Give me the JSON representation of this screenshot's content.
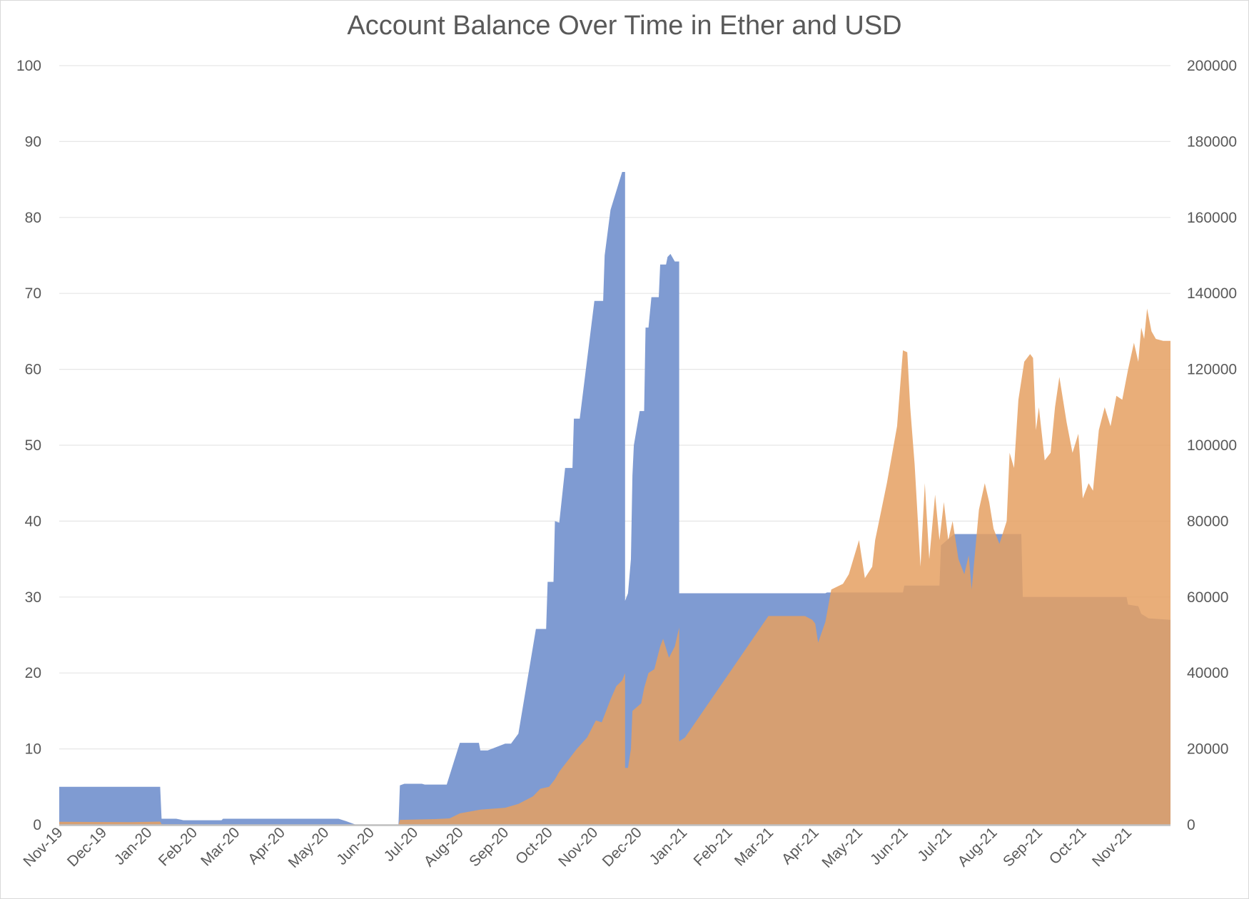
{
  "chart_data": {
    "type": "area",
    "title": "Account Balance Over Time in Ether and USD",
    "x_type": "date",
    "x_labels": [
      "Nov-19",
      "Dec-19",
      "Jan-20",
      "Feb-20",
      "Mar-20",
      "Apr-20",
      "May-20",
      "Jun-20",
      "Jul-20",
      "Aug-20",
      "Sep-20",
      "Oct-20",
      "Nov-20",
      "Dec-20",
      "Jan-21",
      "Feb-21",
      "Mar-21",
      "Apr-21",
      "May-21",
      "Jun-21",
      "Jul-21",
      "Aug-21",
      "Sep-21",
      "Oct-21",
      "Nov-21"
    ],
    "x_range": [
      "2019-11-01",
      "2021-11-30"
    ],
    "left_axis": {
      "ylim": [
        0,
        100
      ],
      "ticks": [
        0,
        10,
        20,
        30,
        40,
        50,
        60,
        70,
        80,
        90,
        100
      ]
    },
    "right_axis": {
      "ylim": [
        0,
        200000
      ],
      "ticks": [
        0,
        20000,
        40000,
        60000,
        80000,
        100000,
        120000,
        140000,
        160000,
        180000,
        200000
      ]
    },
    "grid": true,
    "legend": "none",
    "series": [
      {
        "axis": "left",
        "color": "#7f9bd2",
        "points": [
          [
            "2019-11-01",
            5
          ],
          [
            "2020-01-09",
            5
          ],
          [
            "2020-01-10",
            0.8
          ],
          [
            "2020-01-20",
            0.8
          ],
          [
            "2020-01-25",
            0.6
          ],
          [
            "2020-02-20",
            0.6
          ],
          [
            "2020-02-21",
            0.8
          ],
          [
            "2020-05-10",
            0.8
          ],
          [
            "2020-05-15",
            0.5
          ],
          [
            "2020-05-22",
            0
          ],
          [
            "2020-06-20",
            0
          ],
          [
            "2020-06-21",
            5.2
          ],
          [
            "2020-06-24",
            5.4
          ],
          [
            "2020-07-06",
            5.4
          ],
          [
            "2020-07-08",
            5.3
          ],
          [
            "2020-07-23",
            5.3
          ],
          [
            "2020-08-01",
            10.8
          ],
          [
            "2020-08-14",
            10.8
          ],
          [
            "2020-08-15",
            9.8
          ],
          [
            "2020-08-20",
            9.8
          ],
          [
            "2020-09-01",
            10.7
          ],
          [
            "2020-09-05",
            10.7
          ],
          [
            "2020-09-10",
            12
          ],
          [
            "2020-09-22",
            25.8
          ],
          [
            "2020-09-29",
            25.8
          ],
          [
            "2020-09-30",
            32
          ],
          [
            "2020-10-04",
            32
          ],
          [
            "2020-10-05",
            40
          ],
          [
            "2020-10-08",
            39.8
          ],
          [
            "2020-10-12",
            47
          ],
          [
            "2020-10-17",
            47
          ],
          [
            "2020-10-18",
            53.5
          ],
          [
            "2020-10-22",
            53.5
          ],
          [
            "2020-11-01",
            69
          ],
          [
            "2020-11-07",
            69
          ],
          [
            "2020-11-08",
            75
          ],
          [
            "2020-11-12",
            81
          ],
          [
            "2020-11-20",
            86
          ],
          [
            "2020-11-22",
            86
          ],
          [
            "2020-11-22",
            29.5
          ],
          [
            "2020-11-24",
            30.5
          ],
          [
            "2020-11-26",
            35
          ],
          [
            "2020-11-27",
            46
          ],
          [
            "2020-11-28",
            50
          ],
          [
            "2020-12-02",
            54.5
          ],
          [
            "2020-12-05",
            54.5
          ],
          [
            "2020-12-06",
            65.5
          ],
          [
            "2020-12-08",
            65.5
          ],
          [
            "2020-12-10",
            69.5
          ],
          [
            "2020-12-15",
            69.5
          ],
          [
            "2020-12-16",
            73.8
          ],
          [
            "2020-12-20",
            73.8
          ],
          [
            "2020-12-21",
            74.8
          ],
          [
            "2020-12-23",
            75.2
          ],
          [
            "2020-12-26",
            74.2
          ],
          [
            "2020-12-29",
            74.2
          ],
          [
            "2020-12-29",
            30.5
          ],
          [
            "2021-04-08",
            30.5
          ],
          [
            "2021-04-09",
            30.6
          ],
          [
            "2021-05-31",
            30.6
          ],
          [
            "2021-06-01",
            31.5
          ],
          [
            "2021-06-25",
            31.5
          ],
          [
            "2021-06-26",
            36.8
          ],
          [
            "2021-07-05",
            38.3
          ],
          [
            "2021-07-25",
            38.3
          ],
          [
            "2021-08-20",
            38.3
          ],
          [
            "2021-08-21",
            30
          ],
          [
            "2021-10-01",
            30
          ],
          [
            "2021-10-31",
            30
          ],
          [
            "2021-11-01",
            29
          ],
          [
            "2021-11-08",
            28.8
          ],
          [
            "2021-11-10",
            27.8
          ],
          [
            "2021-11-15",
            27.2
          ],
          [
            "2021-11-30",
            27
          ]
        ]
      },
      {
        "axis": "right",
        "color": "#e5a061",
        "points": [
          [
            "2019-11-01",
            800
          ],
          [
            "2019-12-20",
            700
          ],
          [
            "2020-01-09",
            850
          ],
          [
            "2020-01-10",
            140
          ],
          [
            "2020-05-22",
            0
          ],
          [
            "2020-06-20",
            0
          ],
          [
            "2020-06-21",
            1300
          ],
          [
            "2020-07-15",
            1500
          ],
          [
            "2020-07-25",
            1700
          ],
          [
            "2020-08-01",
            3000
          ],
          [
            "2020-08-15",
            4000
          ],
          [
            "2020-09-01",
            4500
          ],
          [
            "2020-09-10",
            5500
          ],
          [
            "2020-09-20",
            7500
          ],
          [
            "2020-09-25",
            9500
          ],
          [
            "2020-10-01",
            10000
          ],
          [
            "2020-10-05",
            12000
          ],
          [
            "2020-10-08",
            14000
          ],
          [
            "2020-10-12",
            16000
          ],
          [
            "2020-10-15",
            17500
          ],
          [
            "2020-10-20",
            20000
          ],
          [
            "2020-10-27",
            23000
          ],
          [
            "2020-11-02",
            27500
          ],
          [
            "2020-11-06",
            27000
          ],
          [
            "2020-11-12",
            33000
          ],
          [
            "2020-11-16",
            36500
          ],
          [
            "2020-11-20",
            38000
          ],
          [
            "2020-11-22",
            40000
          ],
          [
            "2020-11-22",
            15000
          ],
          [
            "2020-11-24",
            15000
          ],
          [
            "2020-11-26",
            20000
          ],
          [
            "2020-11-27",
            30000
          ],
          [
            "2020-11-30",
            31000
          ],
          [
            "2020-12-03",
            32000
          ],
          [
            "2020-12-05",
            36000
          ],
          [
            "2020-12-08",
            40000
          ],
          [
            "2020-12-12",
            41000
          ],
          [
            "2020-12-16",
            47000
          ],
          [
            "2020-12-18",
            49000
          ],
          [
            "2020-12-22",
            44000
          ],
          [
            "2020-12-26",
            47000
          ],
          [
            "2020-12-29",
            52000
          ],
          [
            "2020-12-29",
            22000
          ],
          [
            "2021-01-02",
            23000
          ],
          [
            "2021-02-28",
            55000
          ],
          [
            "2021-03-25",
            55000
          ],
          [
            "2021-03-30",
            54000
          ],
          [
            "2021-04-01",
            53000
          ],
          [
            "2021-04-03",
            48000
          ],
          [
            "2021-04-08",
            53500
          ],
          [
            "2021-04-12",
            62000
          ],
          [
            "2021-04-20",
            63500
          ],
          [
            "2021-04-24",
            66000
          ],
          [
            "2021-05-01",
            75000
          ],
          [
            "2021-05-05",
            65000
          ],
          [
            "2021-05-10",
            68000
          ],
          [
            "2021-05-12",
            75000
          ],
          [
            "2021-05-20",
            90000
          ],
          [
            "2021-05-27",
            105000
          ],
          [
            "2021-05-31",
            125000
          ],
          [
            "2021-06-03",
            124500
          ],
          [
            "2021-06-05",
            110000
          ],
          [
            "2021-06-08",
            95000
          ],
          [
            "2021-06-12",
            68000
          ],
          [
            "2021-06-15",
            90000
          ],
          [
            "2021-06-18",
            70000
          ],
          [
            "2021-06-22",
            87000
          ],
          [
            "2021-06-25",
            75000
          ],
          [
            "2021-06-28",
            85000
          ],
          [
            "2021-07-01",
            75000
          ],
          [
            "2021-07-04",
            80000
          ],
          [
            "2021-07-08",
            70000
          ],
          [
            "2021-07-12",
            66000
          ],
          [
            "2021-07-15",
            71000
          ],
          [
            "2021-07-17",
            62000
          ],
          [
            "2021-07-22",
            83000
          ],
          [
            "2021-07-26",
            90000
          ],
          [
            "2021-07-29",
            85000
          ],
          [
            "2021-08-01",
            78000
          ],
          [
            "2021-08-05",
            74000
          ],
          [
            "2021-08-10",
            80000
          ],
          [
            "2021-08-12",
            98000
          ],
          [
            "2021-08-15",
            94000
          ],
          [
            "2021-08-18",
            112000
          ],
          [
            "2021-08-22",
            122000
          ],
          [
            "2021-08-26",
            124000
          ],
          [
            "2021-08-28",
            123000
          ],
          [
            "2021-08-30",
            104000
          ],
          [
            "2021-09-01",
            110000
          ],
          [
            "2021-09-05",
            96000
          ],
          [
            "2021-09-09",
            98000
          ],
          [
            "2021-09-12",
            110000
          ],
          [
            "2021-09-15",
            118000
          ],
          [
            "2021-09-20",
            106000
          ],
          [
            "2021-09-24",
            98000
          ],
          [
            "2021-09-28",
            103000
          ],
          [
            "2021-10-01",
            86000
          ],
          [
            "2021-10-05",
            90000
          ],
          [
            "2021-10-08",
            88000
          ],
          [
            "2021-10-12",
            104000
          ],
          [
            "2021-10-16",
            110000
          ],
          [
            "2021-10-20",
            105000
          ],
          [
            "2021-10-24",
            113000
          ],
          [
            "2021-10-28",
            112000
          ],
          [
            "2021-11-01",
            120000
          ],
          [
            "2021-11-05",
            127000
          ],
          [
            "2021-11-08",
            122000
          ],
          [
            "2021-11-10",
            131000
          ],
          [
            "2021-11-12",
            128000
          ],
          [
            "2021-11-14",
            136000
          ],
          [
            "2021-11-17",
            130000
          ],
          [
            "2021-11-20",
            128000
          ],
          [
            "2021-11-25",
            127500
          ],
          [
            "2021-11-30",
            127500
          ]
        ]
      }
    ]
  }
}
